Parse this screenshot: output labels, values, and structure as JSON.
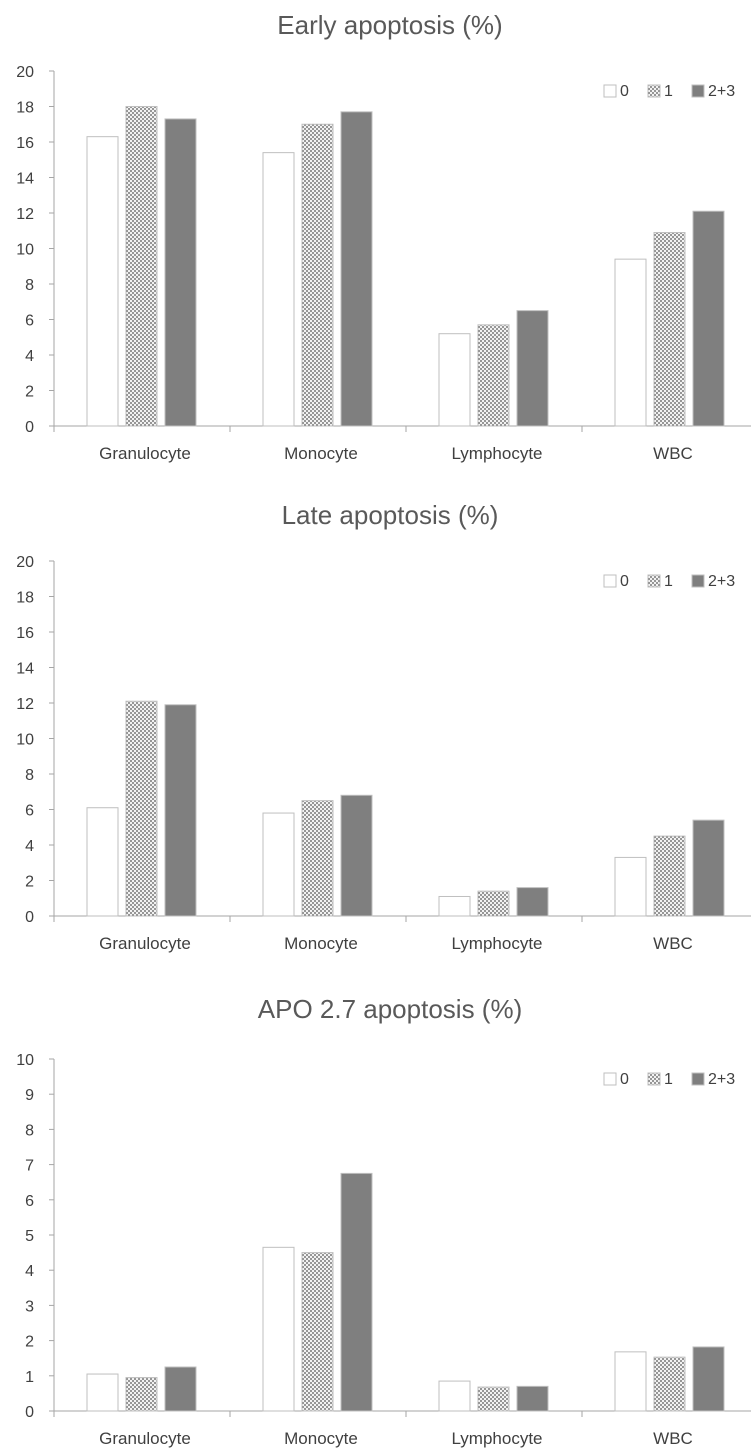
{
  "chart_data": [
    {
      "type": "bar",
      "title": "Early apoptosis (%)",
      "categories": [
        "Granulocyte",
        "Monocyte",
        "Lymphocyte",
        "WBC"
      ],
      "ylim": [
        0,
        20
      ],
      "yticks": [
        0,
        2,
        4,
        6,
        8,
        10,
        12,
        14,
        16,
        18,
        20
      ],
      "legend_position": "top-right",
      "grid": false,
      "series": [
        {
          "name": "0",
          "values": [
            16.3,
            15.4,
            5.2,
            9.4
          ],
          "fill": "#ffffff",
          "stroke": "#bfbfbf",
          "pattern": "none"
        },
        {
          "name": "1",
          "values": [
            18.0,
            17.0,
            5.7,
            10.9
          ],
          "fill": "#e0e0e0",
          "stroke": "#bfbfbf",
          "pattern": "dots"
        },
        {
          "name": "2+3",
          "values": [
            17.3,
            17.7,
            6.5,
            12.1
          ],
          "fill": "#7f7f7f",
          "stroke": "#bfbfbf",
          "pattern": "none"
        }
      ]
    },
    {
      "type": "bar",
      "title": "Late apoptosis (%)",
      "categories": [
        "Granulocyte",
        "Monocyte",
        "Lymphocyte",
        "WBC"
      ],
      "ylim": [
        0,
        20
      ],
      "yticks": [
        0,
        2,
        4,
        6,
        8,
        10,
        12,
        14,
        16,
        18,
        20
      ],
      "legend_position": "top-right",
      "grid": false,
      "series": [
        {
          "name": "0",
          "values": [
            6.1,
            5.8,
            1.1,
            3.3
          ],
          "fill": "#ffffff",
          "stroke": "#bfbfbf",
          "pattern": "none"
        },
        {
          "name": "1",
          "values": [
            12.1,
            6.5,
            1.4,
            4.5
          ],
          "fill": "#e0e0e0",
          "stroke": "#bfbfbf",
          "pattern": "dots"
        },
        {
          "name": "2+3",
          "values": [
            11.9,
            6.8,
            1.6,
            5.4
          ],
          "fill": "#7f7f7f",
          "stroke": "#bfbfbf",
          "pattern": "none"
        }
      ]
    },
    {
      "type": "bar",
      "title": "APO 2.7 apoptosis (%)",
      "categories": [
        "Granulocyte",
        "Monocyte",
        "Lymphocyte",
        "WBC"
      ],
      "ylim": [
        0,
        10
      ],
      "yticks": [
        0,
        1,
        2,
        3,
        4,
        5,
        6,
        7,
        8,
        9,
        10
      ],
      "legend_position": "top-right",
      "grid": false,
      "series": [
        {
          "name": "0",
          "values": [
            1.05,
            4.65,
            0.85,
            1.68
          ],
          "fill": "#ffffff",
          "stroke": "#bfbfbf",
          "pattern": "none"
        },
        {
          "name": "1",
          "values": [
            0.95,
            4.5,
            0.68,
            1.53
          ],
          "fill": "#e0e0e0",
          "stroke": "#bfbfbf",
          "pattern": "dots"
        },
        {
          "name": "2+3",
          "values": [
            1.25,
            6.75,
            0.7,
            1.82
          ],
          "fill": "#7f7f7f",
          "stroke": "#bfbfbf",
          "pattern": "none"
        }
      ]
    }
  ]
}
